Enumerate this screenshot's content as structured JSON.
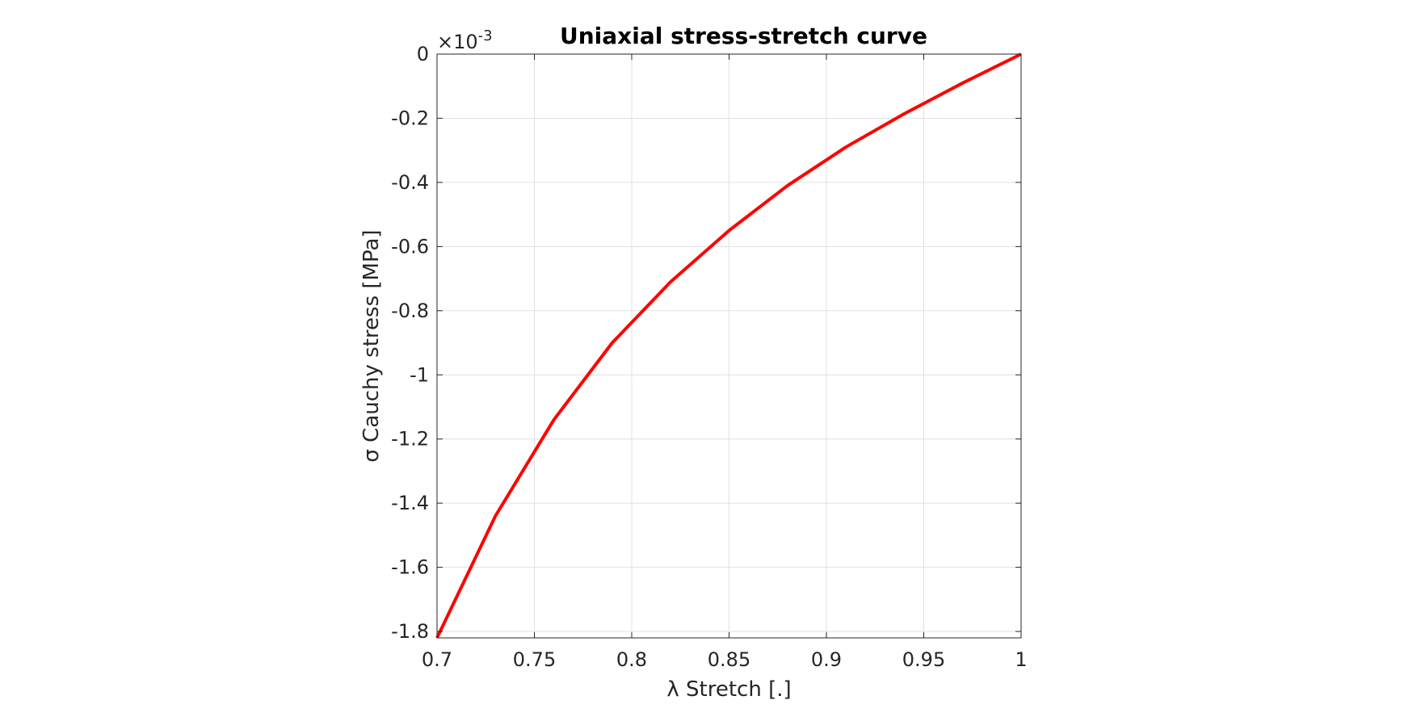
{
  "chart_data": {
    "type": "line",
    "title": "Uniaxial stress-stretch curve",
    "xlabel": "λ Stretch [.]",
    "ylabel": "σ Cauchy stress [MPa]",
    "y_exponent_label": "×10",
    "y_exponent_power": "-3",
    "xlim": [
      0.7,
      1.0
    ],
    "ylim": [
      -1.82,
      0
    ],
    "grid": true,
    "legend": "none",
    "x_ticks": [
      "0.7",
      "0.75",
      "0.8",
      "0.85",
      "0.9",
      "0.95",
      "1"
    ],
    "x_tick_values": [
      0.7,
      0.75,
      0.8,
      0.85,
      0.9,
      0.95,
      1.0
    ],
    "y_ticks": [
      "0",
      "-0.2",
      "-0.4",
      "-0.6",
      "-0.8",
      "-1",
      "-1.2",
      "-1.4",
      "-1.6",
      "-1.8"
    ],
    "y_tick_values": [
      0,
      -0.2,
      -0.4,
      -0.6,
      -0.8,
      -1.0,
      -1.2,
      -1.4,
      -1.6,
      -1.8
    ],
    "series": [
      {
        "color": "#ff0000",
        "x": [
          0.7,
          0.73,
          0.76,
          0.79,
          0.82,
          0.85,
          0.88,
          0.91,
          0.94,
          0.97,
          1.0
        ],
        "y": [
          -1.82,
          -1.44,
          -1.14,
          -0.9,
          -0.71,
          -0.55,
          -0.41,
          -0.29,
          -0.186,
          -0.09,
          0
        ]
      }
    ]
  }
}
